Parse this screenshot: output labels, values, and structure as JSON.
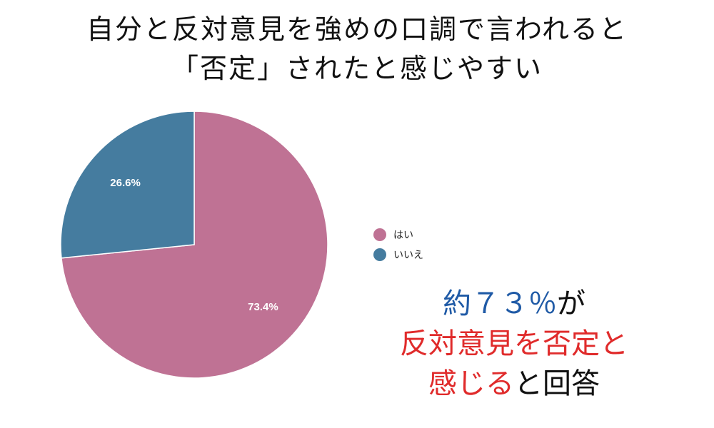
{
  "title_lines": [
    "自分と反対意見を強めの口調で言われると",
    "「否定」されたと感じやすい"
  ],
  "chart_data": {
    "type": "pie",
    "slices": [
      {
        "label": "はい",
        "value": 73.4,
        "value_label": "73.4%",
        "color": "#bf7294"
      },
      {
        "label": "いいえ",
        "value": 26.6,
        "value_label": "26.6%",
        "color": "#457c9f"
      }
    ],
    "legend_position": "right",
    "start": "top, clockwise"
  },
  "callout": {
    "line1_prefix": "約７３％",
    "line1_suffix": "が",
    "line2": "反対意見を否定と",
    "line3_red": "感じる",
    "line3_black": "と回答"
  },
  "colors": {
    "callout_blue": "#1f5aa6",
    "callout_red": "#e02b2b"
  }
}
